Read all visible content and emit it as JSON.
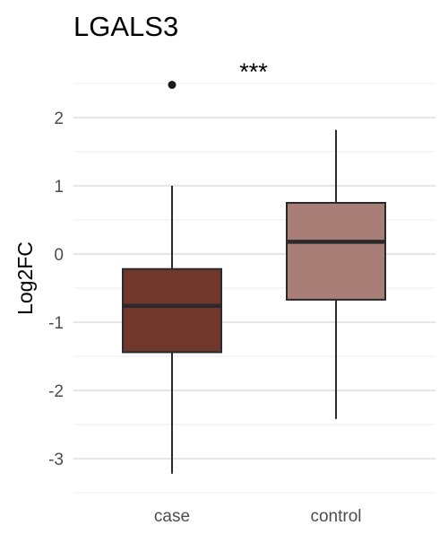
{
  "chart_data": {
    "type": "box",
    "title": "LGALS3",
    "xlabel": "",
    "ylabel": "Log2FC",
    "ylim": [
      -3.5,
      2.5
    ],
    "yticks": [
      -3,
      -2,
      -1,
      0,
      1,
      2
    ],
    "grid": true,
    "categories": [
      "case",
      "control"
    ],
    "boxes": [
      {
        "category": "case",
        "whisker_low": -3.22,
        "q1": -1.44,
        "median": -0.76,
        "q3": -0.22,
        "whisker_high": 1.0,
        "outliers": [
          2.48
        ],
        "color": "#70372a"
      },
      {
        "category": "control",
        "whisker_low": -2.42,
        "q1": -0.67,
        "median": 0.18,
        "q3": 0.75,
        "whisker_high": 1.82,
        "outliers": [],
        "color": "#a97e77"
      }
    ],
    "annotation": "***"
  }
}
